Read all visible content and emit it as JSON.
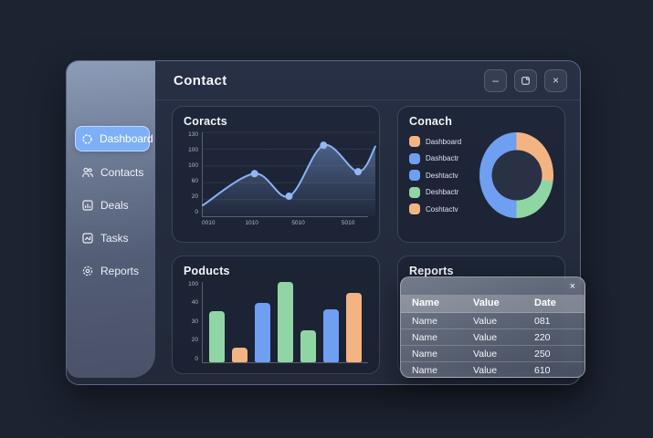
{
  "window": {
    "title": "Contact",
    "controls": {
      "minimize_label": "–",
      "close_label": "×"
    }
  },
  "sidebar": {
    "items": [
      {
        "label": "Dashboard",
        "icon": "gear-circle-icon",
        "active": true
      },
      {
        "label": "Contacts",
        "icon": "people-icon",
        "active": false
      },
      {
        "label": "Deals",
        "icon": "chart-box-icon",
        "active": false
      },
      {
        "label": "Tasks",
        "icon": "task-box-icon",
        "active": false
      },
      {
        "label": "Reports",
        "icon": "gear-icon",
        "active": false
      }
    ]
  },
  "colors": {
    "accent_blue": "#7db0f6",
    "chart_blue": "#6f9ff1",
    "chart_green": "#90d6a4",
    "chart_orange": "#f4b482",
    "line_stroke": "#8ab2f2",
    "dot_fill": "#93b7f3"
  },
  "reports_popup": {
    "close_label": "×"
  },
  "chart_data": [
    {
      "id": "coracts",
      "type": "line",
      "title": "Coracts",
      "y_axis_labels": [
        "130",
        "100",
        "100",
        "60",
        "20",
        "0"
      ],
      "ylim": [
        0,
        130
      ],
      "x_labels": [
        "0010",
        "1010",
        "5010",
        "5010"
      ],
      "x_label_pos_pct": [
        4,
        30,
        58,
        88
      ],
      "points": [
        {
          "x_pct": 0,
          "y": 17
        },
        {
          "x_pct": 30,
          "y": 66
        },
        {
          "x_pct": 50,
          "y": 31
        },
        {
          "x_pct": 70,
          "y": 110
        },
        {
          "x_pct": 90,
          "y": 69
        },
        {
          "x_pct": 100,
          "y": 108
        }
      ],
      "marker_point_indices": [
        1,
        2,
        3,
        4
      ],
      "grid": true,
      "legend_position": "none",
      "area_fill": true
    },
    {
      "id": "conach",
      "type": "donut",
      "title": "Conach",
      "slices": [
        {
          "name": "orange-slice",
          "value_pct": 27.8,
          "color": "#f4b482"
        },
        {
          "name": "green-slice",
          "value_pct": 22.2,
          "color": "#90d6a4"
        },
        {
          "name": "blue-slice",
          "value_pct": 50.0,
          "color": "#6f9ff1"
        }
      ],
      "start_angle_deg": 0,
      "legend_position": "left",
      "legend": [
        {
          "label": "Dashboard",
          "color": "#f4b482"
        },
        {
          "label": "Dashbactr",
          "color": "#6f9ff1"
        },
        {
          "label": "Deshtactv",
          "color": "#6f9ff1"
        },
        {
          "label": "Deshbactr",
          "color": "#90d6a4"
        },
        {
          "label": "Coshtactv",
          "color": "#f4b482"
        }
      ]
    },
    {
      "id": "poducts",
      "type": "bar",
      "title": "Poducts",
      "y_axis_labels": [
        "100",
        "40",
        "30",
        "20",
        "0"
      ],
      "values_pct": [
        64,
        18,
        74,
        100,
        40,
        66,
        86
      ],
      "bar_colors": [
        "#90d6a4",
        "#f4b482",
        "#6f9ff1",
        "#90d6a4",
        "#90d6a4",
        "#6f9ff1",
        "#f4b482"
      ],
      "grid": false
    },
    {
      "id": "reports",
      "type": "table",
      "title": "Reports",
      "headers": [
        "Name",
        "Value",
        "Date"
      ],
      "rows": [
        [
          "Name",
          "Value",
          "081"
        ],
        [
          "Name",
          "Value",
          "220"
        ],
        [
          "Name",
          "Value",
          "250"
        ],
        [
          "Name",
          "Value",
          "610"
        ]
      ]
    }
  ]
}
